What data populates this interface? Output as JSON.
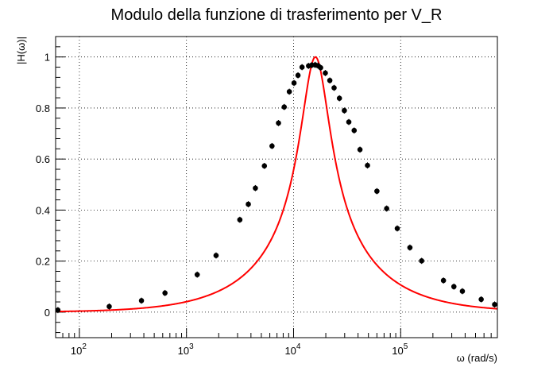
{
  "chart_data": {
    "type": "scatter",
    "title": "Modulo della funzione di trasferimento per V_R",
    "xlabel": "ω (rad/s)",
    "ylabel": "|H(ω)|",
    "xscale": "log",
    "xlim": [
      60,
      800000
    ],
    "ylim": [
      -0.1,
      1.08
    ],
    "grid": true,
    "x_ticks": [
      {
        "value": 100,
        "base": "10",
        "exp": "2"
      },
      {
        "value": 1000,
        "base": "10",
        "exp": "3"
      },
      {
        "value": 10000,
        "base": "10",
        "exp": "4"
      },
      {
        "value": 100000,
        "base": "10",
        "exp": "5"
      }
    ],
    "y_ticks": [
      {
        "value": 0,
        "label": "0"
      },
      {
        "value": 0.2,
        "label": "0.2"
      },
      {
        "value": 0.4,
        "label": "0.4"
      },
      {
        "value": 0.6,
        "label": "0.6"
      },
      {
        "value": 0.8,
        "label": "0.8"
      },
      {
        "value": 1,
        "label": "1"
      }
    ],
    "series": [
      {
        "kind": "points",
        "color": "#000000",
        "x": [
          63,
          190,
          380,
          630,
          1260,
          1890,
          3150,
          3780,
          4400,
          5340,
          6290,
          7230,
          8180,
          9130,
          10100,
          11000,
          12000,
          13800,
          14800,
          15900,
          16900,
          17900,
          19800,
          21800,
          23900,
          26800,
          29800,
          32800,
          36800,
          41700,
          49000,
          60000,
          74000,
          93000,
          122000,
          157000,
          251000,
          314000,
          377000,
          565000,
          754000
        ],
        "y": [
          0.008,
          0.022,
          0.045,
          0.075,
          0.147,
          0.222,
          0.362,
          0.423,
          0.486,
          0.573,
          0.651,
          0.741,
          0.804,
          0.864,
          0.898,
          0.928,
          0.96,
          0.965,
          0.968,
          0.969,
          0.966,
          0.958,
          0.937,
          0.908,
          0.879,
          0.838,
          0.79,
          0.745,
          0.712,
          0.637,
          0.575,
          0.474,
          0.406,
          0.328,
          0.253,
          0.201,
          0.124,
          0.1,
          0.082,
          0.05,
          0.03
        ],
        "y_err": 0.012
      },
      {
        "kind": "fit",
        "color": "#ff0000",
        "model": "|H| = 1 / sqrt(1 + Q^2 (w/w0 - w0/w)^2)",
        "w0": 16000,
        "Q": 1.53
      }
    ]
  }
}
